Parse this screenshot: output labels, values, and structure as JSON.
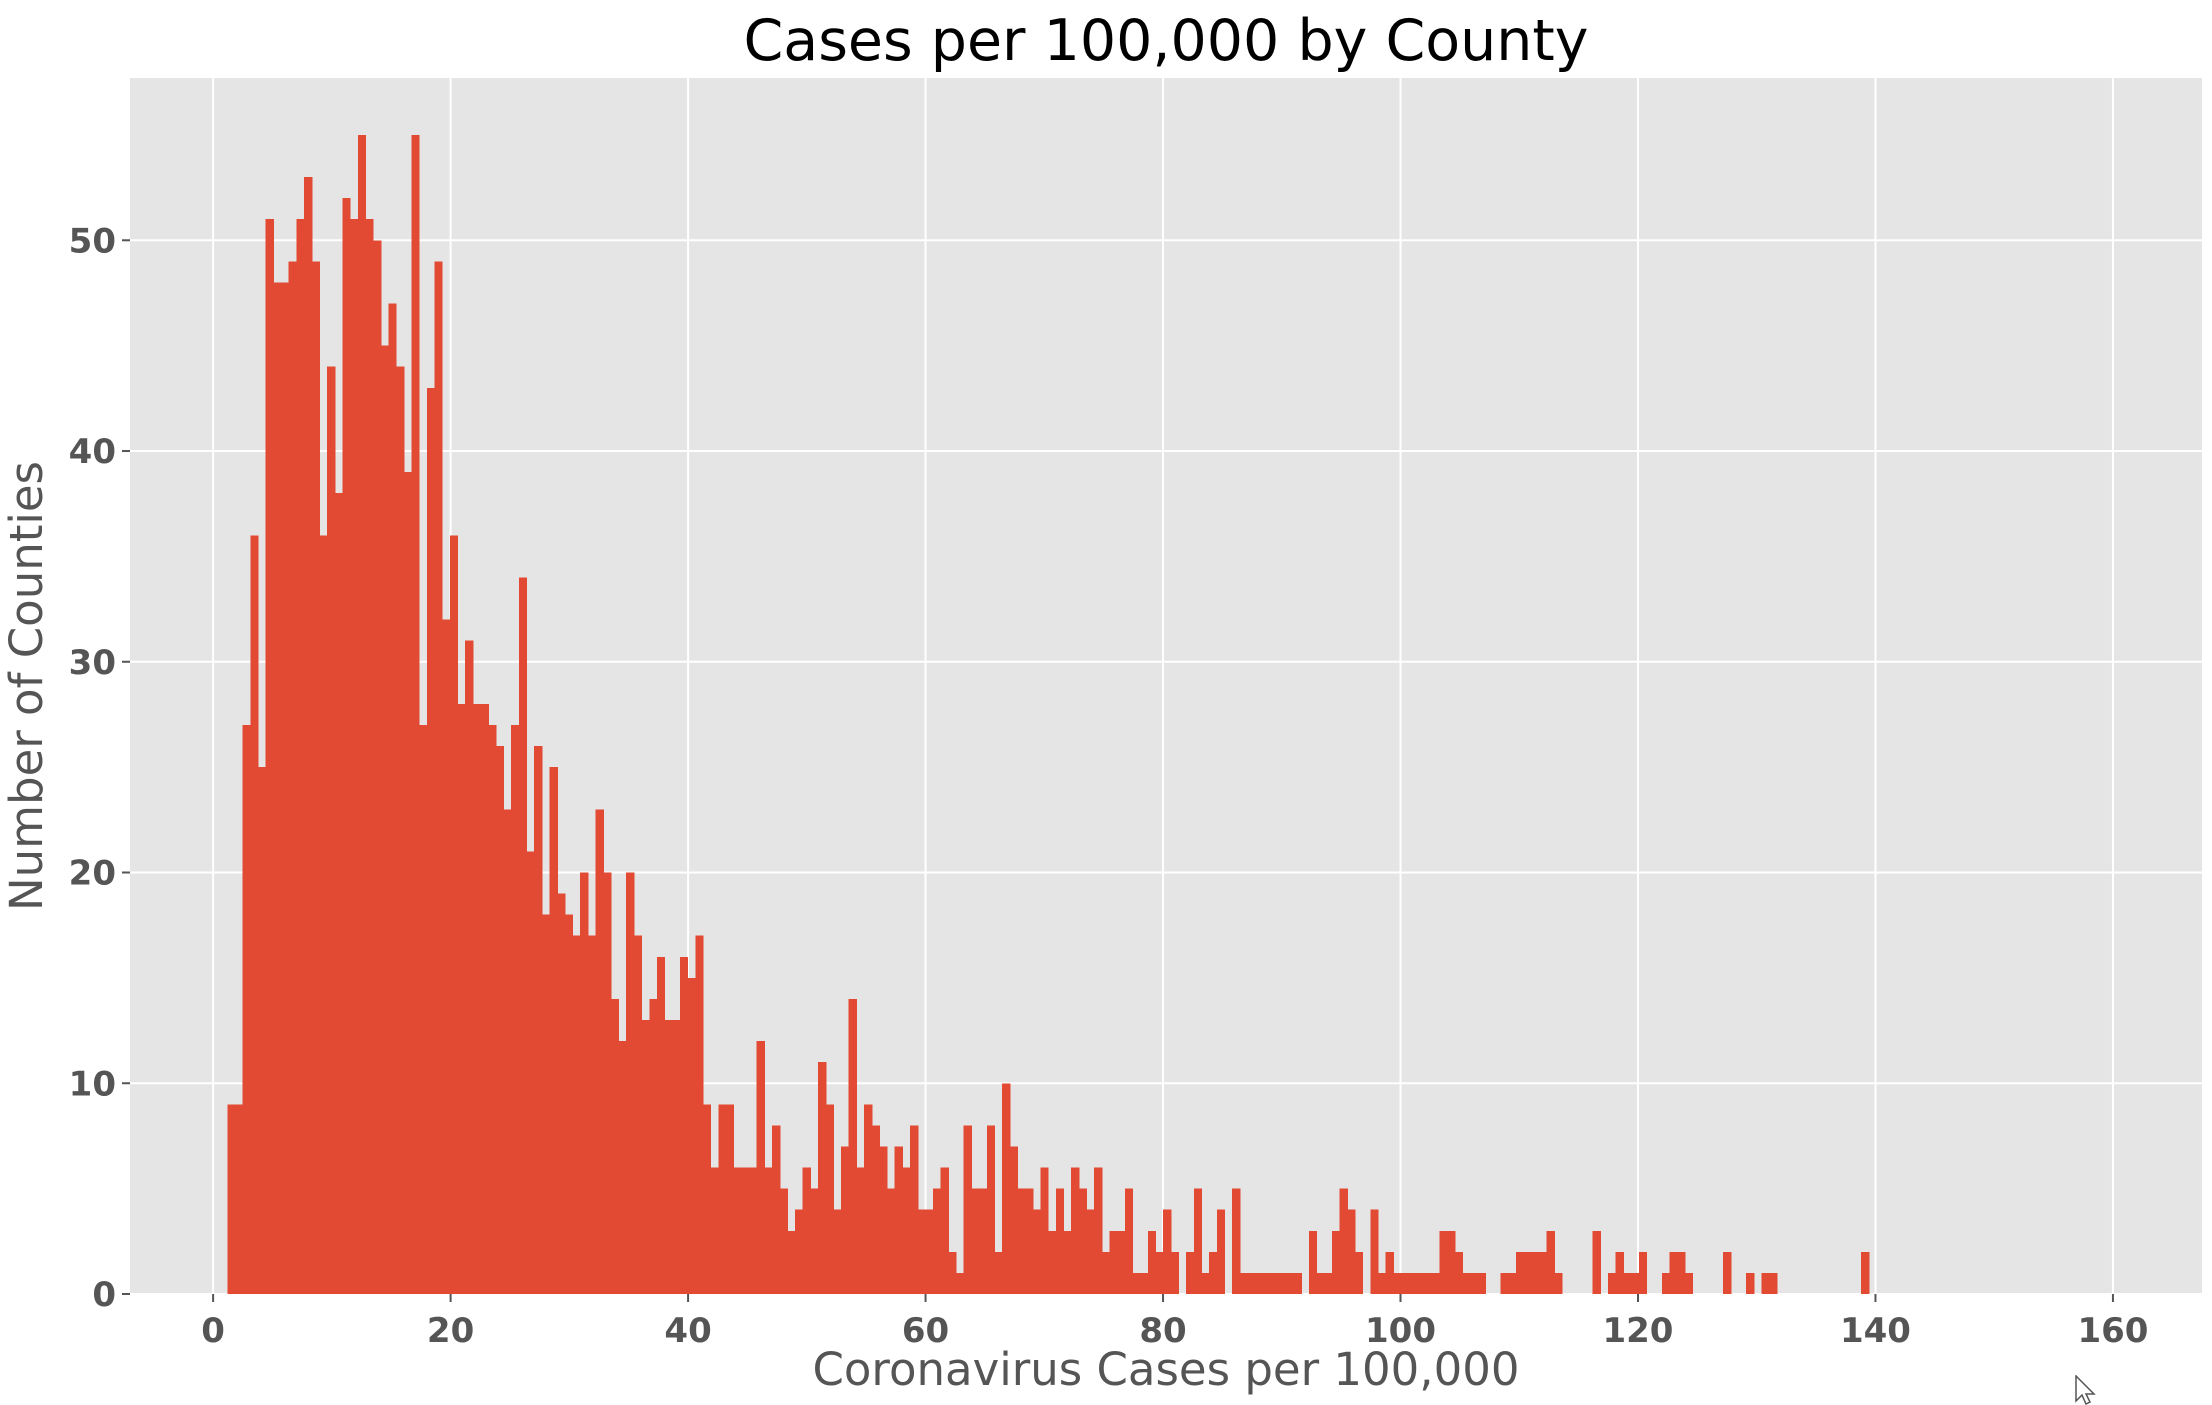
{
  "chart_data": {
    "type": "bar",
    "title": "Cases per 100,000 by County",
    "xlabel": "Coronavirus Cases per 100,000",
    "ylabel": "Number of Counties",
    "xlim": [
      -7,
      167.5
    ],
    "ylim": [
      0,
      57.7
    ],
    "xticks": [
      0,
      20,
      40,
      60,
      80,
      100,
      120,
      140,
      160
    ],
    "yticks": [
      0,
      10,
      20,
      30,
      40,
      50
    ],
    "grid": true,
    "legend": "none",
    "bin_start": 1.2,
    "bin_width": 0.646,
    "values": [
      9,
      9,
      27,
      36,
      25,
      51,
      48,
      48,
      49,
      51,
      53,
      49,
      36,
      44,
      38,
      52,
      51,
      55,
      51,
      50,
      45,
      47,
      44,
      39,
      55,
      27,
      43,
      49,
      32,
      36,
      28,
      31,
      28,
      28,
      27,
      26,
      23,
      27,
      34,
      21,
      26,
      18,
      25,
      19,
      18,
      17,
      20,
      17,
      23,
      20,
      14,
      12,
      20,
      17,
      13,
      14,
      16,
      13,
      13,
      16,
      15,
      17,
      9,
      6,
      9,
      9,
      6,
      6,
      6,
      12,
      6,
      8,
      5,
      3,
      4,
      6,
      5,
      11,
      9,
      4,
      7,
      14,
      6,
      9,
      8,
      7,
      5,
      7,
      6,
      8,
      4,
      4,
      5,
      6,
      2,
      1,
      8,
      5,
      5,
      8,
      2,
      10,
      7,
      5,
      5,
      4,
      6,
      3,
      5,
      3,
      6,
      5,
      4,
      6,
      2,
      3,
      3,
      5,
      1,
      1,
      3,
      2,
      4,
      2,
      0,
      2,
      5,
      1,
      2,
      4,
      0,
      5,
      1,
      1,
      1,
      1,
      1,
      1,
      1,
      1,
      0,
      3,
      1,
      1,
      3,
      5,
      4,
      2,
      0,
      4,
      1,
      2,
      1,
      1,
      1,
      1,
      1,
      1,
      3,
      3,
      2,
      1,
      1,
      1,
      0,
      0,
      1,
      1,
      2,
      2,
      2,
      2,
      3,
      1,
      0,
      0,
      0,
      0,
      3,
      0,
      1,
      2,
      1,
      1,
      2,
      0,
      0,
      1,
      2,
      2,
      1,
      0,
      0,
      0,
      0,
      2,
      0,
      0,
      1,
      0,
      1,
      1,
      0,
      0,
      0,
      0,
      0,
      0,
      0,
      0,
      0,
      0,
      0,
      2
    ],
    "colors": {
      "bar": "#e24a33",
      "plot_background": "#e5e5e5",
      "grid": "#ffffff",
      "tick_text": "#555555",
      "title_text": "#000000"
    }
  },
  "cursor": {
    "icon": "mouse-pointer-icon"
  }
}
